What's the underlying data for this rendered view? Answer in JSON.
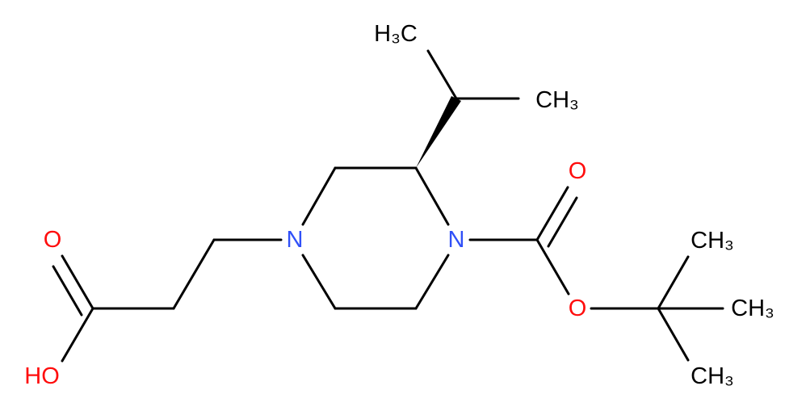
{
  "atoms": {
    "methyl_top": "H₃C",
    "methyl_right": "CH₃",
    "carbonyl_oxygen": "O",
    "ring_n_left": "N",
    "ring_n_right": "N",
    "acid_oxygen": "O",
    "acid_hydroxyl": "HO",
    "ester_oxygen": "O",
    "tbutyl_methyl_1": "CH₃",
    "tbutyl_methyl_2": "CH₃",
    "tbutyl_methyl_3": "CH₃"
  }
}
